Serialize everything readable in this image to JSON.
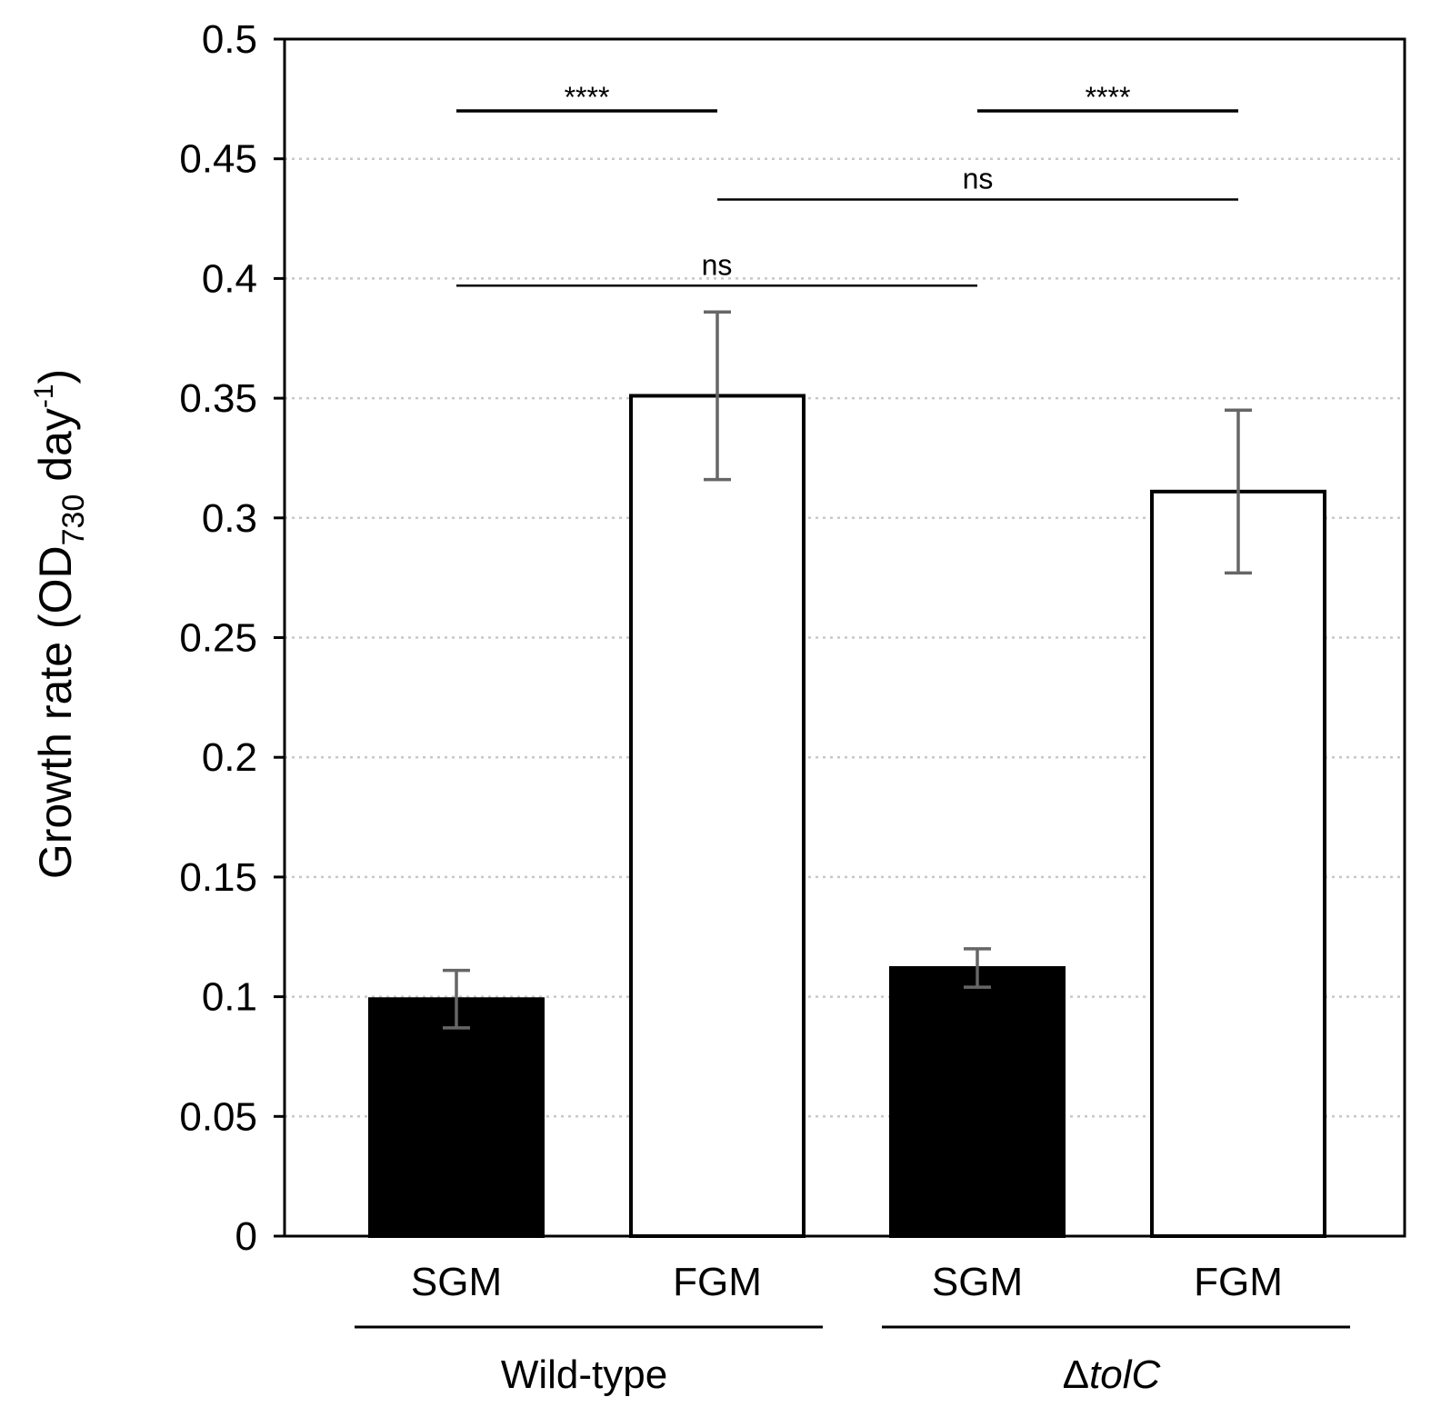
{
  "chart_data": {
    "type": "bar",
    "ylabel": "Growth rate (OD730 day-1)",
    "ylabel_parts": {
      "main": "Growth rate (OD",
      "sub": "730",
      "mid": " day",
      "sup": "-1",
      "end": ")"
    },
    "ylim": [
      0,
      0.5
    ],
    "yticks": [
      "0",
      "0.05",
      "0.1",
      "0.15",
      "0.2",
      "0.25",
      "0.3",
      "0.35",
      "0.4",
      "0.45",
      "0.5"
    ],
    "grid": "horizontal dotted",
    "categories": [
      "SGM",
      "FGM",
      "SGM",
      "FGM"
    ],
    "groups": [
      {
        "label": "Wild-type",
        "italic_part": "",
        "members": [
          0,
          1
        ]
      },
      {
        "label": "ΔtolC",
        "prefix": "Δ",
        "italic_part": "tolC",
        "members": [
          2,
          3
        ]
      }
    ],
    "values": [
      0.099,
      0.351,
      0.112,
      0.311
    ],
    "errors": [
      0.012,
      0.035,
      0.008,
      0.034
    ],
    "bar_colors": [
      "#000000",
      "#ffffff",
      "#000000",
      "#ffffff"
    ],
    "significance": [
      {
        "from": 0,
        "to": 1,
        "y": 0.47,
        "label": "****"
      },
      {
        "from": 2,
        "to": 3,
        "y": 0.47,
        "label": "****"
      },
      {
        "from": 1,
        "to": 3,
        "y": 0.433,
        "label": "ns"
      },
      {
        "from": 0,
        "to": 2,
        "y": 0.397,
        "label": "ns"
      }
    ]
  }
}
